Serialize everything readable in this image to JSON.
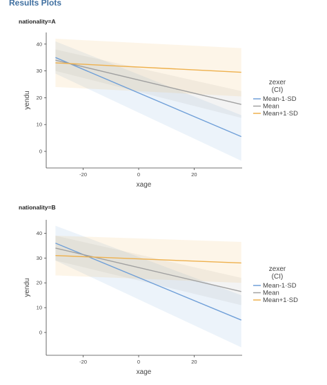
{
  "page": {
    "title": "Results Plots"
  },
  "legend": {
    "title_line1": "zexer",
    "title_line2": "(CI)",
    "items": [
      "Mean-1·SD",
      "Mean",
      "Mean+1·SD"
    ]
  },
  "colors": {
    "Mean-1·SD": "#6f9fd8",
    "Mean": "#a0a0a0",
    "Mean+1·SD": "#eeb04c",
    "axis": "#444444",
    "text": "#444444"
  },
  "chart_data": [
    {
      "type": "line",
      "panel_label": "nationality=A",
      "xlabel": "xage",
      "ylabel": "yendu",
      "x_ticks": [
        -20,
        0,
        20
      ],
      "y_ticks": [
        0,
        10,
        20,
        30,
        40
      ],
      "xlim": [
        -33.5,
        37
      ],
      "ylim": [
        -6,
        46
      ],
      "grid": false,
      "legend_position": "right",
      "series": [
        {
          "name": "Mean-1·SD",
          "x": [
            -30,
            37
          ],
          "y": [
            35,
            5.5
          ],
          "lower": [
            29,
            -3.5
          ],
          "upper": [
            41,
            13.5
          ]
        },
        {
          "name": "Mean",
          "x": [
            -30,
            37
          ],
          "y": [
            34,
            17.5
          ],
          "lower": [
            30,
            12.5
          ],
          "upper": [
            38,
            22.5
          ]
        },
        {
          "name": "Mean+1·SD",
          "x": [
            -30,
            37
          ],
          "y": [
            33,
            29.5
          ],
          "lower": [
            24,
            20.5
          ],
          "upper": [
            42,
            38.5
          ]
        }
      ]
    },
    {
      "type": "line",
      "panel_label": "nationality=B",
      "xlabel": "xage",
      "ylabel": "yendu",
      "x_ticks": [
        -20,
        0,
        20
      ],
      "y_ticks": [
        0,
        10,
        20,
        30,
        40
      ],
      "xlim": [
        -33.5,
        37
      ],
      "ylim": [
        -9.5,
        46
      ],
      "grid": false,
      "legend_position": "right",
      "series": [
        {
          "name": "Mean-1·SD",
          "x": [
            -30,
            37
          ],
          "y": [
            36,
            5
          ],
          "lower": [
            29,
            -6
          ],
          "upper": [
            43,
            15
          ]
        },
        {
          "name": "Mean",
          "x": [
            -30,
            37
          ],
          "y": [
            34,
            16.5
          ],
          "lower": [
            29,
            11
          ],
          "upper": [
            39,
            22
          ]
        },
        {
          "name": "Mean+1·SD",
          "x": [
            -30,
            37
          ],
          "y": [
            31,
            28
          ],
          "lower": [
            23,
            20
          ],
          "upper": [
            39,
            36.5
          ]
        }
      ]
    }
  ]
}
